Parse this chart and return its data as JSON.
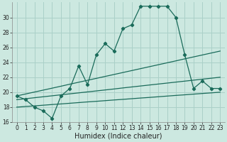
{
  "xlabel": "Humidex (Indice chaleur)",
  "background_color": "#cce8e0",
  "grid_color": "#aad0c8",
  "line_color": "#1a6b5a",
  "x_values": [
    0,
    1,
    2,
    3,
    4,
    5,
    6,
    7,
    8,
    9,
    10,
    11,
    12,
    13,
    14,
    15,
    16,
    17,
    18,
    19,
    20,
    21,
    22,
    23
  ],
  "main_line": [
    19.5,
    19.0,
    18.0,
    17.5,
    16.5,
    19.5,
    20.5,
    23.5,
    21.0,
    25.0,
    26.5,
    25.5,
    28.5,
    29.0,
    31.5,
    31.5,
    31.5,
    31.5,
    30.0,
    25.0,
    20.5,
    21.5,
    20.5,
    20.5
  ],
  "trend_line1": [
    18.0,
    18.09,
    18.17,
    18.26,
    18.35,
    18.43,
    18.52,
    18.61,
    18.7,
    18.78,
    18.87,
    18.96,
    19.04,
    19.13,
    19.22,
    19.3,
    19.39,
    19.48,
    19.57,
    19.65,
    19.74,
    19.83,
    19.91,
    20.0
  ],
  "trend_line2": [
    19.0,
    19.13,
    19.26,
    19.39,
    19.52,
    19.65,
    19.78,
    19.91,
    20.04,
    20.17,
    20.3,
    20.43,
    20.57,
    20.7,
    20.83,
    20.96,
    21.09,
    21.22,
    21.35,
    21.48,
    21.61,
    21.74,
    21.87,
    22.0
  ],
  "trend_line3": [
    19.5,
    19.76,
    20.02,
    20.28,
    20.54,
    20.8,
    21.07,
    21.33,
    21.59,
    21.85,
    22.11,
    22.37,
    22.63,
    22.89,
    23.15,
    23.41,
    23.67,
    23.93,
    24.19,
    24.46,
    24.72,
    24.98,
    25.24,
    25.5
  ],
  "ylim": [
    16,
    32
  ],
  "xlim": [
    -0.5,
    23.5
  ],
  "yticks": [
    16,
    18,
    20,
    22,
    24,
    26,
    28,
    30
  ],
  "xticks": [
    0,
    1,
    2,
    3,
    4,
    5,
    6,
    7,
    8,
    9,
    10,
    11,
    12,
    13,
    14,
    15,
    16,
    17,
    18,
    19,
    20,
    21,
    22,
    23
  ],
  "xlabel_fontsize": 7,
  "tick_fontsize": 5.5,
  "linewidth": 0.9,
  "markersize": 2.2
}
